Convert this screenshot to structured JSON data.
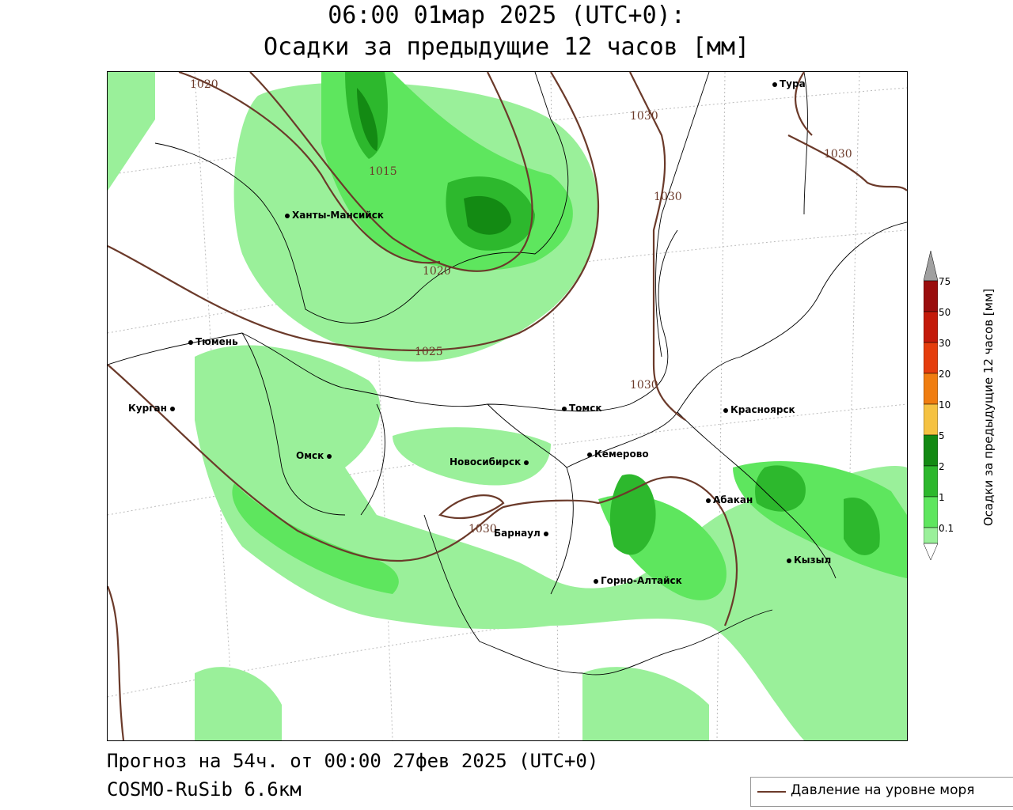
{
  "title": {
    "line1": "06:00 01мар 2025 (UTC+0):",
    "line2": "Осадки за предыдущие 12 часов [мм]"
  },
  "footer": {
    "forecast": "Прогноз на 54ч. от 00:00 27фев 2025 (UTC+0)",
    "model": "COSMO-RuSib 6.6км"
  },
  "legend": {
    "pressure_label": "Давление на уровне моря"
  },
  "colorbar": {
    "title": "Осадки за предыдущие 12 часов [мм]",
    "levels": [
      "0.1",
      "1",
      "2",
      "5",
      "10",
      "20",
      "30",
      "50",
      "75"
    ],
    "colors": [
      "#9af09a",
      "#5ee65e",
      "#2db82d",
      "#138a13",
      "#f5c242",
      "#f07d10",
      "#e53d0c",
      "#c41a0a",
      "#9a0d0d",
      "#a0a0a0"
    ]
  },
  "cities": [
    {
      "name": "Тура"
    },
    {
      "name": "Ханты-Мансийск"
    },
    {
      "name": "Тюмень"
    },
    {
      "name": "Курган"
    },
    {
      "name": "Омск"
    },
    {
      "name": "Томск"
    },
    {
      "name": "Красноярск"
    },
    {
      "name": "Новосибирск"
    },
    {
      "name": "Кемерово"
    },
    {
      "name": "Абакан"
    },
    {
      "name": "Барнаул"
    },
    {
      "name": "Кызыл"
    },
    {
      "name": "Горно-Алтайск"
    }
  ],
  "isobars": [
    "1020",
    "1030",
    "1030",
    "1030",
    "1015",
    "1020",
    "1025",
    "1030",
    "1030"
  ]
}
